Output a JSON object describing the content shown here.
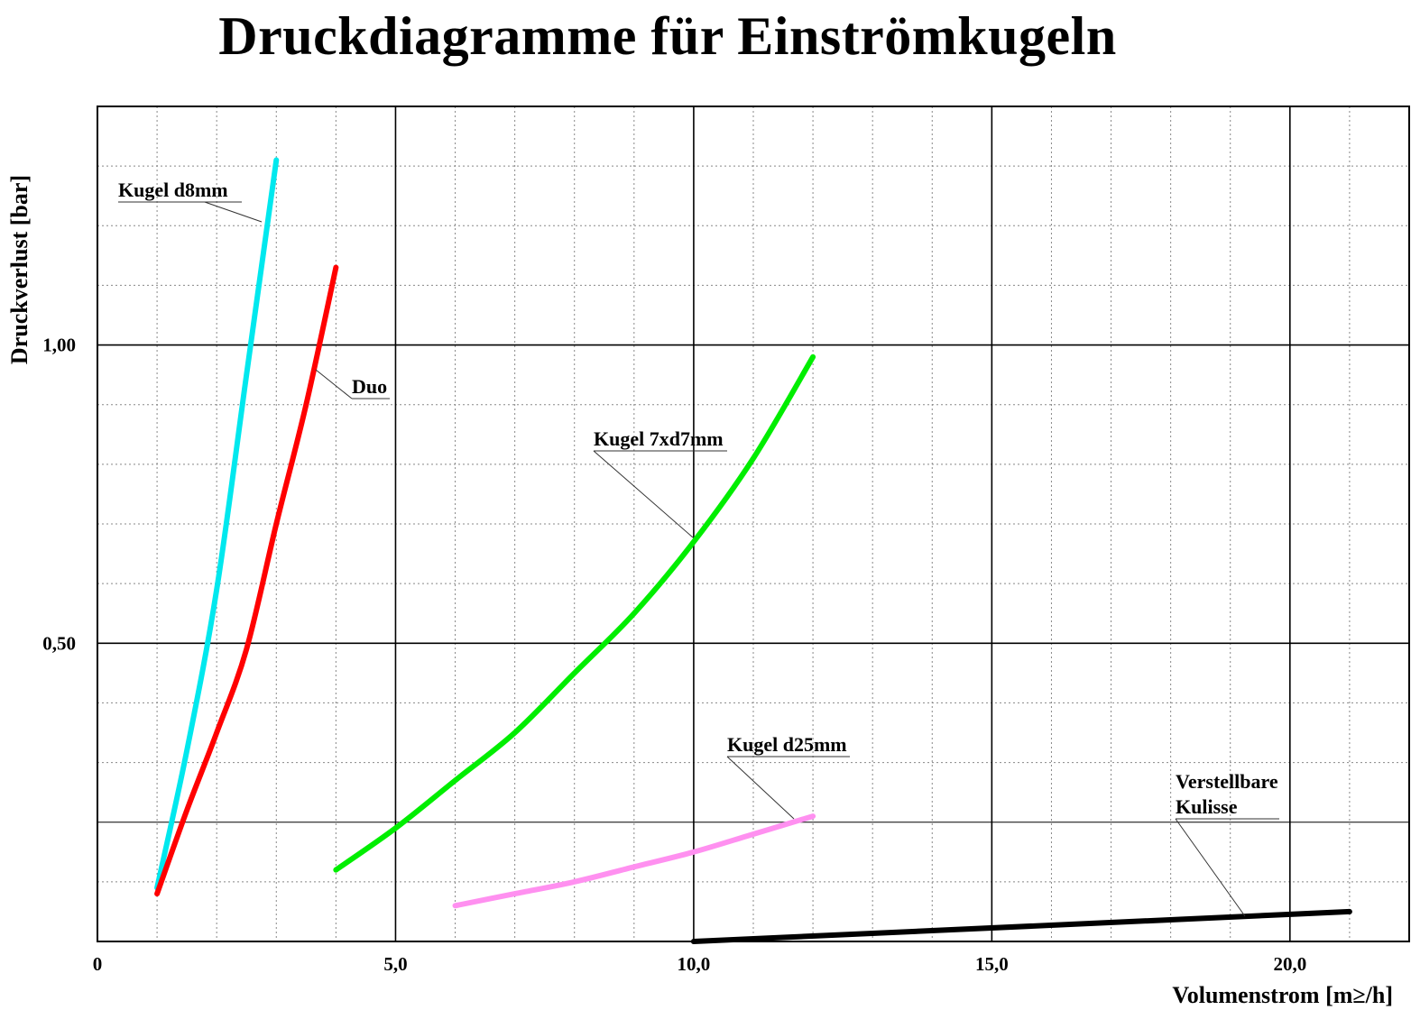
{
  "chart_data": {
    "type": "line",
    "title": "Druckdiagramme für Einströmkugeln",
    "xlabel": "Volumenstrom [m≥/h]",
    "ylabel": "Druckverlust [bar]",
    "xlim": [
      0,
      22
    ],
    "ylim": [
      0,
      1.4
    ],
    "x_ticks": [
      {
        "value": 0,
        "label": "0"
      },
      {
        "value": 5,
        "label": "5,0"
      },
      {
        "value": 10,
        "label": "10,0"
      },
      {
        "value": 15,
        "label": "15,0"
      },
      {
        "value": 20,
        "label": "20,0"
      }
    ],
    "y_ticks": [
      {
        "value": 0.5,
        "label": "0,50"
      },
      {
        "value": 1.0,
        "label": "1,00"
      }
    ],
    "grid": true,
    "series": [
      {
        "name": "Kugel d8mm",
        "color": "#00e8ee",
        "points": [
          [
            1.0,
            0.09
          ],
          [
            1.5,
            0.32
          ],
          [
            2.0,
            0.59
          ],
          [
            2.5,
            0.95
          ],
          [
            3.0,
            1.31
          ]
        ]
      },
      {
        "name": "Duo",
        "color": "#ff0000",
        "points": [
          [
            1.0,
            0.08
          ],
          [
            1.5,
            0.22
          ],
          [
            2.0,
            0.35
          ],
          [
            2.5,
            0.49
          ],
          [
            3.0,
            0.7
          ],
          [
            3.5,
            0.9
          ],
          [
            4.0,
            1.13
          ]
        ]
      },
      {
        "name": "Kugel 7xd7mm",
        "color": "#00ee00",
        "points": [
          [
            4.0,
            0.12
          ],
          [
            5.0,
            0.19
          ],
          [
            6.0,
            0.27
          ],
          [
            7.0,
            0.35
          ],
          [
            8.0,
            0.45
          ],
          [
            9.0,
            0.55
          ],
          [
            10.0,
            0.67
          ],
          [
            11.0,
            0.81
          ],
          [
            12.0,
            0.98
          ]
        ]
      },
      {
        "name": "Kugel d25mm",
        "color": "#ff90f0",
        "points": [
          [
            6.0,
            0.06
          ],
          [
            7.0,
            0.08
          ],
          [
            8.0,
            0.1
          ],
          [
            9.0,
            0.125
          ],
          [
            10.0,
            0.15
          ],
          [
            11.0,
            0.18
          ],
          [
            12.0,
            0.21
          ]
        ]
      },
      {
        "name": "Verstellbare Kulisse",
        "color": "#000000",
        "points": [
          [
            10.0,
            0.0
          ],
          [
            21.0,
            0.05
          ]
        ]
      }
    ],
    "annotations": [
      {
        "series": "Kugel d8mm",
        "lines": [
          "Kugel d8mm"
        ]
      },
      {
        "series": "Duo",
        "lines": [
          "Duo"
        ]
      },
      {
        "series": "Kugel 7xd7mm",
        "lines": [
          "Kugel 7xd7mm"
        ]
      },
      {
        "series": "Kugel d25mm",
        "lines": [
          "Kugel d25mm"
        ]
      },
      {
        "series": "Verstellbare Kulisse",
        "lines": [
          "Verstellbare",
          "Kulisse"
        ]
      }
    ]
  }
}
